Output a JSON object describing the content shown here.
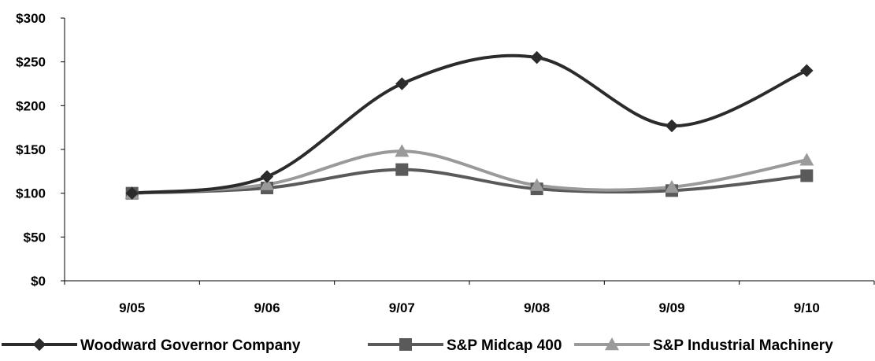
{
  "chart_data": {
    "type": "line",
    "title": "",
    "xlabel": "",
    "ylabel": "",
    "categories": [
      "9/05",
      "9/06",
      "9/07",
      "9/08",
      "9/09",
      "9/10"
    ],
    "y_ticks": [
      "$0",
      "$50",
      "$100",
      "$150",
      "$200",
      "$250",
      "$300"
    ],
    "ylim": [
      0,
      300
    ],
    "grid": false,
    "legend_position": "bottom",
    "series": [
      {
        "name": "Woodward Governor Company",
        "values": [
          100,
          119,
          225,
          255,
          177,
          240
        ],
        "color": "#2b2b2b",
        "marker": "diamond"
      },
      {
        "name": "S&P Midcap 400",
        "values": [
          100,
          106,
          127,
          105,
          103,
          120
        ],
        "color": "#5a5a5a",
        "marker": "square"
      },
      {
        "name": "S&P Industrial Machinery",
        "values": [
          100,
          110,
          148,
          109,
          107,
          138
        ],
        "color": "#9a9a9a",
        "marker": "triangle"
      }
    ]
  }
}
